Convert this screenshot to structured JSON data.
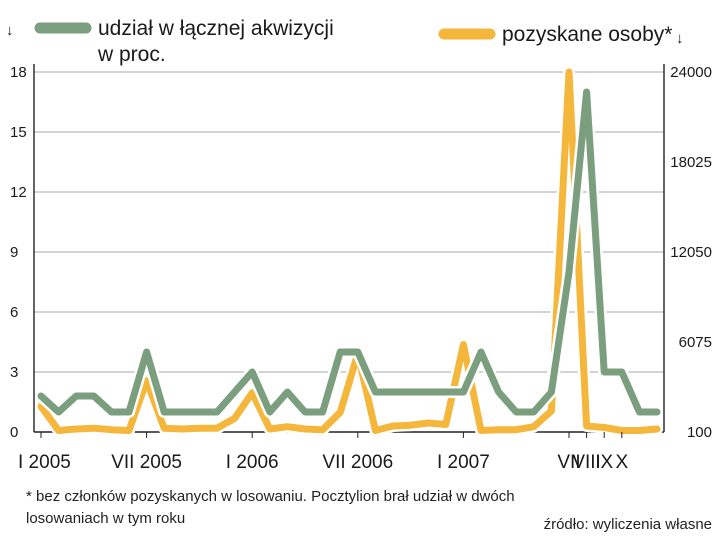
{
  "chart_data": {
    "type": "line",
    "legend": [
      {
        "key": "share",
        "lines": [
          "udział w łącznej akwizycji",
          "w proc."
        ],
        "color": "#7a9e7e",
        "axis": "left"
      },
      {
        "key": "people",
        "lines": [
          "pozyskane osoby*"
        ],
        "color": "#f5b63c",
        "axis": "right"
      }
    ],
    "left_axis": {
      "ticks": [
        "0",
        "3",
        "6",
        "9",
        "12",
        "15",
        "18"
      ],
      "ylim": [
        0,
        18
      ]
    },
    "right_axis": {
      "ticks": [
        "100",
        "6075",
        "12050",
        "18025",
        "24000"
      ],
      "ylim": [
        100,
        24000
      ]
    },
    "x_labels": [
      {
        "text": "I 2005",
        "index": 0
      },
      {
        "text": "VII 2005",
        "index": 6
      },
      {
        "text": "I 2006",
        "index": 12
      },
      {
        "text": "VII 2006",
        "index": 18
      },
      {
        "text": "I 2007",
        "index": 24
      },
      {
        "text": "VII",
        "index": 30
      },
      {
        "text": "VIII",
        "index": 31
      },
      {
        "text": "IX",
        "index": 32
      },
      {
        "text": "X",
        "index": 33
      }
    ],
    "series": [
      {
        "key": "share",
        "color": "#7a9e7e",
        "axis": "left",
        "values": [
          1.8,
          1.0,
          1.8,
          1.8,
          1.0,
          1.0,
          4.0,
          1.0,
          1.0,
          1.0,
          1.0,
          2.0,
          3.0,
          1.0,
          2.0,
          1.0,
          1.0,
          4.0,
          4.0,
          2.0,
          2.0,
          2.0,
          2.0,
          2.0,
          2.0,
          4.0,
          2.0,
          1.0,
          1.0,
          2.0,
          8.0,
          17.0,
          3.0,
          3.0,
          1.0,
          1.0
        ]
      },
      {
        "key": "people",
        "color": "#f5b63c",
        "axis": "right",
        "values": [
          1800,
          200,
          300,
          350,
          250,
          200,
          3500,
          350,
          300,
          350,
          350,
          1000,
          2700,
          300,
          450,
          300,
          250,
          1400,
          5300,
          200,
          500,
          550,
          700,
          600,
          5900,
          200,
          250,
          250,
          450,
          1500,
          24000,
          500,
          400,
          200,
          200,
          300
        ]
      }
    ],
    "arrow_glyph": "↓"
  },
  "footnote": {
    "line1": "* bez członków pozyskanych w losowaniu. Pocztylion brał udział w dwóch",
    "line2": "losowaniach w tym roku"
  },
  "source": "źródło: wyliczenia własne"
}
